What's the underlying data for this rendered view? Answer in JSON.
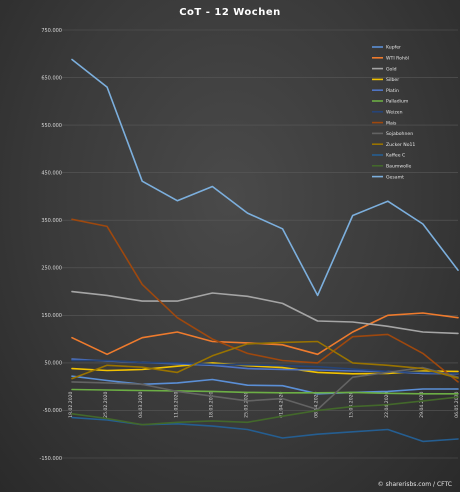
{
  "chart_data": {
    "type": "line",
    "title": "CoT - 12 Wochen",
    "source": "© sharerisbs.com / CFTC",
    "ylim": [
      -150000,
      750000
    ],
    "yticks": [
      750000,
      650000,
      550000,
      450000,
      350000,
      250000,
      150000,
      50000,
      -50000,
      -150000
    ],
    "ytick_labels": [
      "750.000",
      "650.000",
      "550.000",
      "450.000",
      "350.000",
      "250.000",
      "150.000",
      "50.000",
      "-50.000",
      "-150.000"
    ],
    "x": [
      "18.02.2020",
      "25.02.2020",
      "03.03.2020",
      "10.03.2020",
      "17.03.2020",
      "24.03.2020",
      "31.03.2020",
      "07.04.2020",
      "14.04.2020",
      "21.04.2020",
      "28.04.2020",
      "05.05.2020"
    ],
    "x_labels": [
      "18.02.2020",
      "25.02.2020",
      "04.03.2020",
      "11.03.2020",
      "18.03.2020",
      "25.03.2020",
      "01.04.2020",
      "08.04.2020",
      "15.04.2020",
      "22.04.2020",
      "29.04.2020",
      "06.05.2020"
    ],
    "grid": true,
    "legend_position": "top-right",
    "series": [
      {
        "name": "Kupfer",
        "color": "#5b8fd6",
        "values": [
          22000,
          13000,
          5000,
          8000,
          15000,
          3000,
          2000,
          -15000,
          -12000,
          -10000,
          -5000,
          -5000
        ]
      },
      {
        "name": "WTI Rohöl",
        "color": "#ef7b2d",
        "values": [
          103000,
          68000,
          103000,
          115000,
          95000,
          92000,
          88000,
          68000,
          115000,
          150000,
          155000,
          145000
        ]
      },
      {
        "name": "Gold",
        "color": "#a5a5a5",
        "values": [
          200000,
          192000,
          180000,
          180000,
          197000,
          190000,
          175000,
          138000,
          136000,
          127000,
          115000,
          112000
        ]
      },
      {
        "name": "Silber",
        "color": "#f2c200",
        "values": [
          38000,
          34000,
          36000,
          43000,
          50000,
          44000,
          40000,
          30000,
          27000,
          28000,
          33000,
          32000
        ]
      },
      {
        "name": "Platin",
        "color": "#4f74c4",
        "values": [
          58000,
          54000,
          51000,
          48000,
          45000,
          38000,
          36000,
          35000,
          33000,
          32000,
          28000,
          27000
        ]
      },
      {
        "name": "Palladium",
        "color": "#6cae45",
        "values": [
          -6000,
          -7000,
          -8000,
          -9000,
          -10000,
          -12000,
          -13000,
          -13000,
          -12000,
          -14000,
          -15000,
          -15000
        ]
      },
      {
        "name": "Weizen",
        "color": "#264478",
        "values": [
          55000,
          55000,
          51000,
          50000,
          47000,
          46000,
          44000,
          42000,
          37000,
          32000,
          30000,
          28000
        ]
      },
      {
        "name": "Mais",
        "color": "#9e480e",
        "values": [
          352000,
          337000,
          215000,
          145000,
          100000,
          70000,
          55000,
          50000,
          105000,
          110000,
          70000,
          10000
        ]
      },
      {
        "name": "Sojabohnen",
        "color": "#636363",
        "values": [
          10000,
          8000,
          5000,
          -10000,
          -20000,
          -30000,
          -25000,
          -48000,
          20000,
          30000,
          40000,
          20000
        ]
      },
      {
        "name": "Zucker No11",
        "color": "#997300",
        "values": [
          17000,
          45000,
          41000,
          30000,
          65000,
          90000,
          93000,
          95000,
          50000,
          45000,
          38000,
          18000
        ]
      },
      {
        "name": "Kaffee C",
        "color": "#255e91",
        "values": [
          -65000,
          -70000,
          -80000,
          -78000,
          -83000,
          -90000,
          -108000,
          -100000,
          -95000,
          -90000,
          -115000,
          -110000
        ]
      },
      {
        "name": "Baumwolle",
        "color": "#43682b",
        "values": [
          -57000,
          -67000,
          -80000,
          -75000,
          -72000,
          -75000,
          -62000,
          -50000,
          -42000,
          -38000,
          -30000,
          -22000
        ]
      },
      {
        "name": "Gesamt",
        "color": "#7cafdd",
        "values": [
          688000,
          630000,
          432000,
          391000,
          421000,
          365000,
          332000,
          192000,
          360000,
          390000,
          342000,
          245000
        ]
      }
    ]
  }
}
